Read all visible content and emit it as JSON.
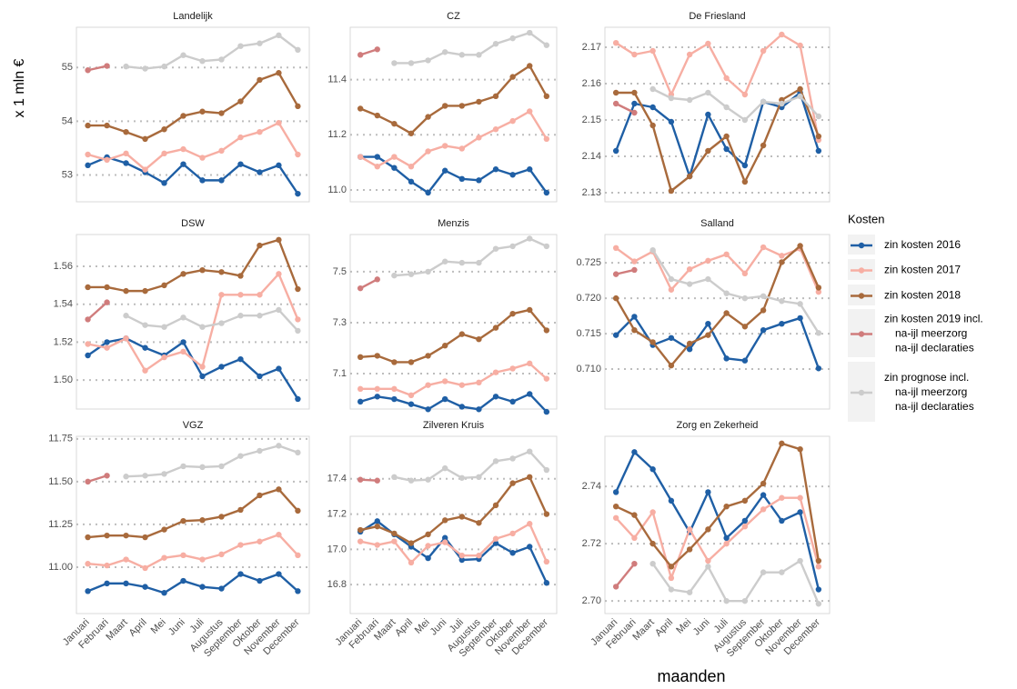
{
  "chart_data": {
    "type": "line",
    "y_label": "x 1 mln €",
    "x_label": "maanden",
    "grid": true,
    "categories": [
      "Januari",
      "Februari",
      "Maart",
      "April",
      "Mei",
      "Juni",
      "Juli",
      "Augustus",
      "September",
      "Oktober",
      "November",
      "December"
    ],
    "legend": {
      "title": "Kosten",
      "position": "right",
      "entries": [
        {
          "name": [
            "zin kosten 2016"
          ],
          "color": "#1f5fa5"
        },
        {
          "name": [
            "zin kosten 2017"
          ],
          "color": "#f7aea3"
        },
        {
          "name": [
            "zin kosten 2018"
          ],
          "color": "#a86a3c"
        },
        {
          "name": [
            "zin kosten 2019 incl.",
            "na-ijl meerzorg",
            "na-ijl declaraties"
          ],
          "color": "#d07c7c"
        },
        {
          "name": [
            "zin prognose incl.",
            "na-ijl meerzorg",
            "na-ijl declaraties"
          ],
          "color": "#cccccc"
        }
      ]
    },
    "panels": [
      {
        "title": "Landelijk",
        "ylim": [
          52.5,
          55.75
        ],
        "yticks": [
          53,
          54,
          55
        ],
        "series": [
          {
            "values": [
              53.18,
              53.33,
              53.22,
              53.05,
              52.85,
              53.2,
              52.9,
              52.9,
              53.2,
              53.05,
              53.18,
              52.65
            ]
          },
          {
            "values": [
              53.38,
              53.28,
              53.4,
              53.1,
              53.4,
              53.48,
              53.32,
              53.45,
              53.7,
              53.8,
              53.97,
              53.38
            ]
          },
          {
            "values": [
              53.92,
              53.92,
              53.8,
              53.67,
              53.85,
              54.1,
              54.18,
              54.15,
              54.37,
              54.77,
              54.9,
              54.28
            ]
          },
          {
            "values": [
              54.95,
              55.03,
              null,
              null,
              null,
              null,
              null,
              null,
              null,
              null,
              null,
              null
            ]
          },
          {
            "values": [
              null,
              null,
              55.02,
              54.98,
              55.02,
              55.23,
              55.12,
              55.15,
              55.4,
              55.45,
              55.6,
              55.33
            ]
          }
        ]
      },
      {
        "title": "CZ",
        "ylim": [
          10.957,
          11.59
        ],
        "yticks": [
          {
            "value": 11,
            "label": "11.0"
          },
          11.2,
          11.4
        ],
        "series": [
          {
            "values": [
              11.12,
              11.12,
              11.08,
              11.03,
              10.99,
              11.07,
              11.04,
              11.035,
              11.075,
              11.055,
              11.075,
              10.99
            ]
          },
          {
            "values": [
              11.12,
              11.085,
              11.12,
              11.085,
              11.14,
              11.16,
              11.15,
              11.19,
              11.22,
              11.25,
              11.285,
              11.185
            ]
          },
          {
            "values": [
              11.295,
              11.27,
              11.24,
              11.205,
              11.265,
              11.305,
              11.305,
              11.32,
              11.34,
              11.41,
              11.45,
              11.34
            ]
          },
          {
            "values": [
              11.49,
              11.51,
              null,
              null,
              null,
              null,
              null,
              null,
              null,
              null,
              null,
              null
            ]
          },
          {
            "values": [
              null,
              null,
              11.46,
              11.46,
              11.47,
              11.5,
              11.49,
              11.49,
              11.53,
              11.55,
              11.57,
              11.525
            ]
          }
        ]
      },
      {
        "title": "De Friesland",
        "ylim": [
          2.1275,
          2.1755
        ],
        "yticks": [
          2.13,
          2.14,
          2.15,
          2.16,
          2.17
        ],
        "series": [
          {
            "values": [
              2.1415,
              2.1545,
              2.1535,
              2.1495,
              2.1345,
              2.1515,
              2.142,
              2.1375,
              2.155,
              2.1535,
              2.1575,
              2.1415
            ]
          },
          {
            "values": [
              2.1712,
              2.168,
              2.169,
              2.157,
              2.168,
              2.171,
              2.1615,
              2.157,
              2.169,
              2.1735,
              2.1705,
              2.1445
            ]
          },
          {
            "values": [
              2.1575,
              2.1575,
              2.1485,
              2.1305,
              2.1345,
              2.1415,
              2.1455,
              2.133,
              2.143,
              2.1555,
              2.1585,
              2.1455
            ]
          },
          {
            "values": [
              2.1545,
              2.152,
              null,
              null,
              null,
              null,
              null,
              null,
              null,
              null,
              null,
              null
            ]
          },
          {
            "values": [
              null,
              null,
              2.1585,
              2.156,
              2.1555,
              2.1575,
              2.1535,
              2.15,
              2.155,
              2.1545,
              2.1565,
              2.151
            ]
          }
        ]
      },
      {
        "title": "DSW",
        "ylim": [
          1.4847,
          1.5768
        ],
        "yticks": [
          {
            "value": 1.5,
            "label": "1.50"
          },
          1.52,
          1.54,
          1.56
        ],
        "series": [
          {
            "values": [
              1.513,
              1.52,
              1.522,
              1.517,
              1.513,
              1.52,
              1.502,
              1.507,
              1.511,
              1.502,
              1.506,
              1.49
            ]
          },
          {
            "values": [
              1.519,
              1.517,
              1.522,
              1.505,
              1.512,
              1.515,
              1.507,
              1.545,
              1.545,
              1.545,
              1.556,
              1.532
            ]
          },
          {
            "values": [
              1.549,
              1.549,
              1.547,
              1.547,
              1.55,
              1.556,
              1.558,
              1.557,
              1.555,
              1.571,
              1.574,
              1.548
            ]
          },
          {
            "values": [
              1.532,
              1.541,
              null,
              null,
              null,
              null,
              null,
              null,
              null,
              null,
              null,
              null
            ]
          },
          {
            "values": [
              null,
              null,
              1.534,
              1.529,
              1.528,
              1.533,
              1.528,
              1.53,
              1.534,
              1.534,
              1.537,
              1.526
            ]
          }
        ]
      },
      {
        "title": "Menzis",
        "ylim": [
          6.961,
          7.646
        ],
        "yticks": [
          7.1,
          7.3,
          7.5
        ],
        "series": [
          {
            "values": [
              6.99,
              7.01,
              7.0,
              6.98,
              6.96,
              7.0,
              6.97,
              6.96,
              7.01,
              6.99,
              7.02,
              6.95
            ]
          },
          {
            "values": [
              7.04,
              7.04,
              7.04,
              7.015,
              7.055,
              7.07,
              7.055,
              7.065,
              7.105,
              7.12,
              7.14,
              7.08
            ]
          },
          {
            "values": [
              7.165,
              7.17,
              7.145,
              7.145,
              7.17,
              7.21,
              7.255,
              7.235,
              7.28,
              7.335,
              7.35,
              7.27
            ]
          },
          {
            "values": [
              7.435,
              7.47,
              null,
              null,
              null,
              null,
              null,
              null,
              null,
              null,
              null,
              null
            ]
          },
          {
            "values": [
              null,
              null,
              7.485,
              7.49,
              7.5,
              7.54,
              7.535,
              7.535,
              7.59,
              7.6,
              7.63,
              7.6
            ]
          }
        ]
      },
      {
        "title": "Salland",
        "ylim": [
          0.70436,
          0.729
        ],
        "yticks": [
          {
            "value": 0.71,
            "label": "0.710"
          },
          0.715,
          {
            "value": 0.72,
            "label": "0.720"
          },
          0.725
        ],
        "series": [
          {
            "values": [
              0.7148,
              0.7174,
              0.7134,
              0.7144,
              0.7128,
              0.7164,
              0.7115,
              0.7112,
              0.7155,
              0.7164,
              0.7172,
              0.7101
            ]
          },
          {
            "values": [
              0.7271,
              0.7252,
              0.7266,
              0.7212,
              0.7241,
              0.7253,
              0.7262,
              0.7235,
              0.7272,
              0.726,
              0.727,
              0.7209
            ]
          },
          {
            "values": [
              0.72,
              0.7155,
              0.7138,
              0.7105,
              0.7136,
              0.7148,
              0.7179,
              0.716,
              0.7183,
              0.7251,
              0.7274,
              0.7215
            ]
          },
          {
            "values": [
              0.7234,
              0.724,
              null,
              null,
              null,
              null,
              null,
              null,
              null,
              null,
              null,
              null
            ]
          },
          {
            "values": [
              null,
              null,
              0.7268,
              0.7227,
              0.722,
              0.7227,
              0.7207,
              0.72,
              0.7203,
              0.7196,
              0.7192,
              0.7151
            ]
          }
        ]
      },
      {
        "title": "VGZ",
        "ylim": [
          10.729,
          11.765
        ],
        "yticks": [
          {
            "value": 11,
            "label": "11.00"
          },
          11.25,
          {
            "value": 11.5,
            "label": "11.50"
          },
          11.75
        ],
        "series": [
          {
            "values": [
              10.86,
              10.905,
              10.905,
              10.885,
              10.85,
              10.92,
              10.885,
              10.875,
              10.96,
              10.92,
              10.96,
              10.86
            ]
          },
          {
            "values": [
              11.02,
              11.01,
              11.045,
              10.995,
              11.055,
              11.07,
              11.045,
              11.075,
              11.13,
              11.15,
              11.19,
              11.07
            ]
          },
          {
            "values": [
              11.175,
              11.185,
              11.185,
              11.175,
              11.22,
              11.27,
              11.275,
              11.295,
              11.335,
              11.42,
              11.455,
              11.33
            ]
          },
          {
            "values": [
              11.5,
              11.535,
              null,
              null,
              null,
              null,
              null,
              null,
              null,
              null,
              null,
              null
            ]
          },
          {
            "values": [
              null,
              null,
              11.53,
              11.535,
              11.545,
              11.59,
              11.585,
              11.59,
              11.65,
              11.68,
              11.71,
              11.67
            ]
          }
        ]
      },
      {
        "title": "Zilveren Kruis",
        "ylim": [
          16.636,
          17.641
        ],
        "yticks": [
          16.8,
          {
            "value": 17,
            "label": "17.0"
          },
          17.2,
          17.4
        ],
        "series": [
          {
            "values": [
              17.1,
              17.16,
              17.085,
              17.015,
              16.95,
              17.065,
              16.94,
              16.945,
              17.035,
              16.98,
              17.015,
              16.81
            ]
          },
          {
            "values": [
              17.045,
              17.025,
              17.045,
              16.925,
              17.02,
              17.04,
              16.965,
              16.965,
              17.06,
              17.09,
              17.145,
              16.93
            ]
          },
          {
            "values": [
              17.11,
              17.13,
              17.09,
              17.035,
              17.085,
              17.165,
              17.185,
              17.15,
              17.25,
              17.375,
              17.41,
              17.2
            ]
          },
          {
            "values": [
              17.395,
              17.39,
              null,
              null,
              null,
              null,
              null,
              null,
              null,
              null,
              null,
              null
            ]
          },
          {
            "values": [
              null,
              null,
              17.41,
              17.39,
              17.395,
              17.46,
              17.405,
              17.41,
              17.5,
              17.515,
              17.555,
              17.45
            ]
          }
        ]
      },
      {
        "title": "Zorg en Zekerheid",
        "ylim": [
          2.6956,
          2.7575
        ],
        "yticks": [
          {
            "value": 2.7,
            "label": "2.70"
          },
          2.72,
          2.74
        ],
        "series": [
          {
            "values": [
              2.738,
              2.752,
              2.746,
              2.735,
              2.724,
              2.738,
              2.722,
              2.728,
              2.737,
              2.728,
              2.731,
              2.704
            ]
          },
          {
            "values": [
              2.729,
              2.722,
              2.731,
              2.708,
              2.725,
              2.714,
              2.72,
              2.726,
              2.732,
              2.736,
              2.736,
              2.712
            ]
          },
          {
            "values": [
              2.733,
              2.73,
              2.72,
              2.712,
              2.718,
              2.725,
              2.733,
              2.735,
              2.741,
              2.755,
              2.753,
              2.714
            ]
          },
          {
            "values": [
              2.705,
              2.713,
              null,
              null,
              null,
              null,
              null,
              null,
              null,
              null,
              null,
              null
            ]
          },
          {
            "values": [
              null,
              null,
              2.713,
              2.704,
              2.703,
              2.712,
              2.7,
              2.7,
              2.71,
              2.71,
              2.714,
              2.699
            ]
          }
        ]
      }
    ]
  }
}
